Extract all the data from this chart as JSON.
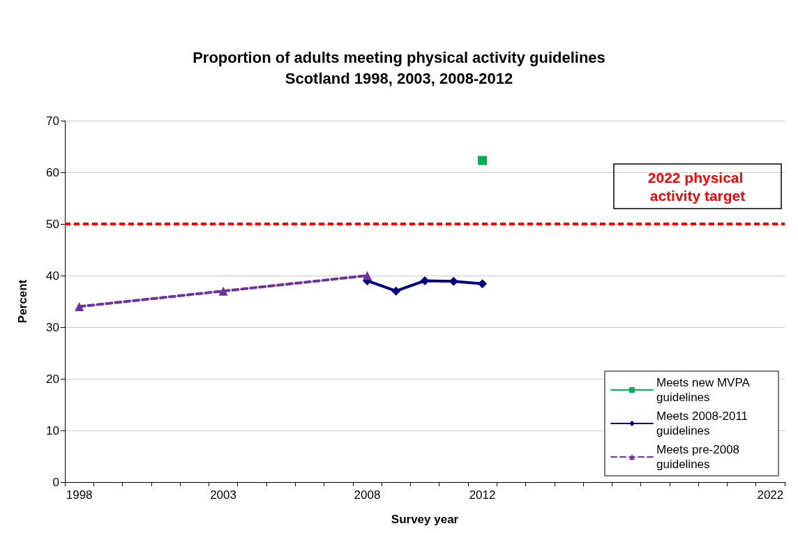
{
  "chart_data": {
    "type": "line",
    "title": "Proportion of adults meeting physical activity guidelines",
    "subtitle": "Scotland 1998, 2003, 2008-2012",
    "xlabel": "Survey year",
    "ylabel": "Percent",
    "categories": [
      "1998",
      null,
      null,
      null,
      null,
      "2003",
      null,
      null,
      null,
      null,
      "2008",
      null,
      null,
      null,
      "2012",
      null,
      null,
      null,
      null,
      null,
      null,
      null,
      null,
      null,
      "2022"
    ],
    "series": [
      {
        "name": "Meets new MVPA guidelines",
        "color": "#00b050",
        "marker": "square",
        "line_style": "solid",
        "values": [
          null,
          null,
          null,
          null,
          null,
          null,
          null,
          null,
          null,
          null,
          null,
          null,
          null,
          null,
          62.3,
          null,
          null,
          null,
          null,
          null,
          null,
          null,
          null,
          null,
          null
        ]
      },
      {
        "name": "Meets 2008-2011 guidelines",
        "color": "#000080",
        "marker": "diamond",
        "line_style": "solid",
        "values": [
          null,
          null,
          null,
          null,
          null,
          null,
          null,
          null,
          null,
          null,
          39,
          37,
          39,
          38.9,
          38.4,
          null,
          null,
          null,
          null,
          null,
          null,
          null,
          null,
          null,
          null
        ]
      },
      {
        "name": "Meets pre-2008 guidelines",
        "color": "#7030a0",
        "marker": "triangle",
        "line_style": "dashed",
        "values": [
          34,
          null,
          null,
          null,
          null,
          37,
          null,
          null,
          null,
          null,
          40,
          null,
          null,
          null,
          null,
          null,
          null,
          null,
          null,
          null,
          null,
          null,
          null,
          null,
          null
        ]
      }
    ],
    "ylim": [
      0,
      70
    ],
    "yticks": [
      0,
      10,
      20,
      30,
      40,
      50,
      60,
      70
    ],
    "grid": "y",
    "legend": "bottom right",
    "ref_lines": [
      {
        "axis": "y",
        "value": 50,
        "label": "2022 physical activity target",
        "color": "#ff0000",
        "line_style": "dashed"
      }
    ]
  }
}
